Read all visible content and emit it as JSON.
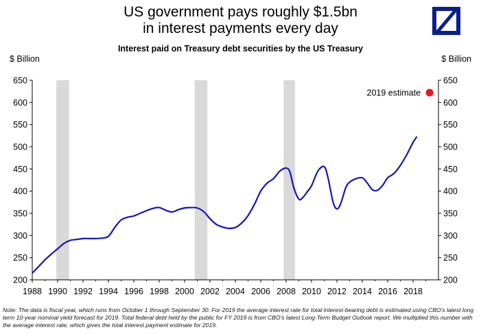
{
  "header": {
    "title_line1": "US government pays roughly $1.5bn",
    "title_line2": "in interest payments every day",
    "subtitle": "Interest paid on Treasury debt securities by the US Treasury",
    "unit_left": "$ Billion",
    "unit_right": "$ Billion"
  },
  "logo": {
    "icon": "deutsche-bank-slash-logo",
    "color": "#0a1e8c"
  },
  "note": "Note: The data is fiscal year, which runs from October 1 through September 30. For 2019 the average interest rate for total interest-bearing debt is estimated using CBO's latest long term 10-year nominal yield forecast for 2019. Total federal debt held by the public for FY 2019 is from CBO's latest Long-Term Budget Outlook report. We multiplied this number with the average interest rate, which gives the total interest payment estimate for 2019.",
  "chart_data": {
    "type": "line",
    "title": "Interest paid on Treasury debt securities by the US Treasury",
    "xlabel": "",
    "ylabel": "$ Billion",
    "xlim": [
      1988,
      2020
    ],
    "ylim": [
      200,
      650
    ],
    "xticks": [
      1988,
      1990,
      1992,
      1994,
      1996,
      1998,
      2000,
      2002,
      2004,
      2006,
      2008,
      2010,
      2012,
      2014,
      2016,
      2018
    ],
    "yticks": [
      200,
      250,
      300,
      350,
      400,
      450,
      500,
      550,
      600,
      650
    ],
    "grid": false,
    "recession_shading": [
      [
        1989.9,
        1990.9
      ],
      [
        2000.8,
        2001.8
      ],
      [
        2007.8,
        2008.7
      ]
    ],
    "recession_color": "#d9d9d9",
    "series": [
      {
        "color": "#1414b4",
        "x": [
          1988.0,
          1988.5,
          1989.0,
          1989.5,
          1990.0,
          1990.5,
          1991.0,
          1991.5,
          1992.0,
          1992.5,
          1993.0,
          1993.5,
          1994.0,
          1994.5,
          1995.0,
          1995.5,
          1996.0,
          1996.5,
          1997.0,
          1997.5,
          1998.0,
          1998.5,
          1999.0,
          1999.5,
          2000.0,
          2000.5,
          2001.0,
          2001.5,
          2002.0,
          2002.5,
          2003.0,
          2003.5,
          2004.0,
          2004.5,
          2005.0,
          2005.5,
          2006.0,
          2006.5,
          2007.0,
          2007.5,
          2008.0,
          2008.3,
          2008.6,
          2009.0,
          2009.3,
          2009.7,
          2010.0,
          2010.5,
          2011.0,
          2011.3,
          2011.7,
          2012.0,
          2012.3,
          2012.7,
          2013.0,
          2013.5,
          2014.0,
          2014.4,
          2014.8,
          2015.2,
          2015.6,
          2016.0,
          2016.5,
          2017.0,
          2017.5,
          2018.0,
          2018.3
        ],
        "values": [
          215,
          230,
          245,
          258,
          270,
          282,
          289,
          291,
          293,
          293,
          293,
          294,
          298,
          318,
          335,
          341,
          344,
          350,
          356,
          361,
          363,
          357,
          353,
          358,
          362,
          363,
          362,
          354,
          338,
          325,
          319,
          316,
          318,
          328,
          345,
          370,
          400,
          418,
          428,
          445,
          452,
          443,
          408,
          382,
          385,
          400,
          412,
          445,
          455,
          430,
          375,
          360,
          372,
          408,
          420,
          428,
          430,
          418,
          403,
          402,
          413,
          430,
          440,
          458,
          482,
          510,
          523
        ]
      }
    ],
    "annotations": [
      {
        "text": "2019 estimate",
        "x": 2019.3,
        "y": 622,
        "marker_color": "#e8141c"
      }
    ]
  }
}
